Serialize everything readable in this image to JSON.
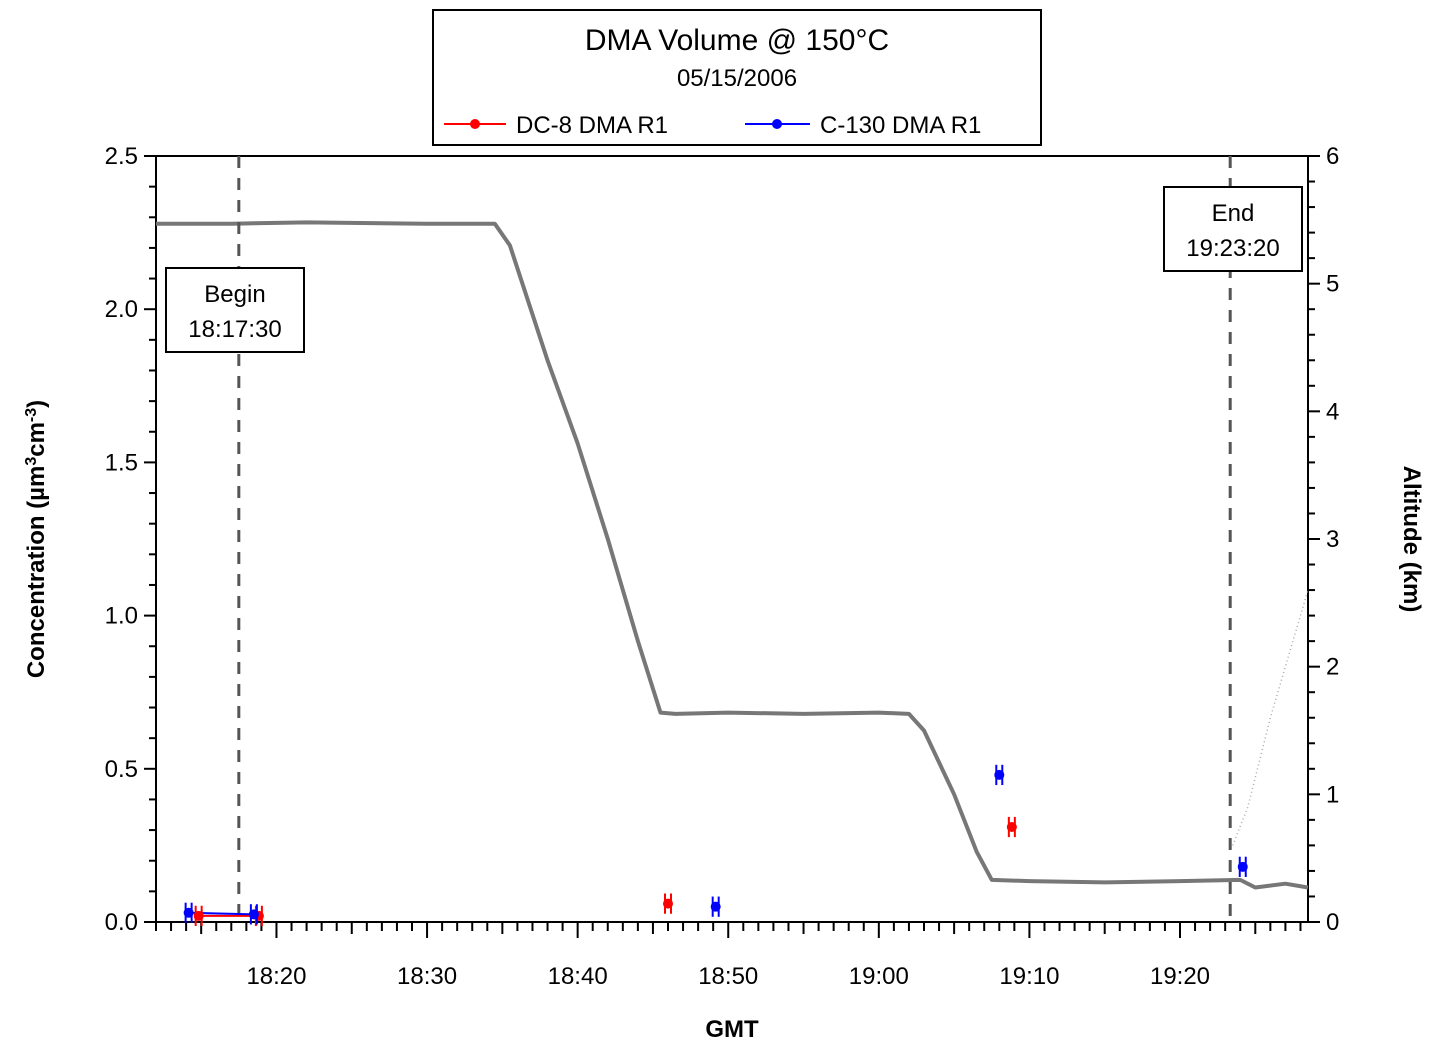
{
  "chart_data": {
    "type": "scatter",
    "title": "DMA Volume @ 150°C",
    "subtitle": "05/15/2006",
    "xlabel": "GMT",
    "ylabel": {
      "main": "Concentration  (µm",
      "sup1": "3",
      "mid": "cm",
      "sup2": "-3",
      "end": ")"
    },
    "y2label": "Altitude  (km)",
    "xlim": [
      "18:12:00",
      "19:28:30"
    ],
    "ylim": [
      0,
      2.5
    ],
    "y2lim": [
      0,
      6
    ],
    "x_ticks": [
      "18:20",
      "18:30",
      "18:40",
      "18:50",
      "19:00",
      "19:10",
      "19:20"
    ],
    "y_ticks": [
      "0.0",
      "0.5",
      "1.0",
      "1.5",
      "2.0",
      "2.5"
    ],
    "y2_ticks": [
      "0",
      "1",
      "2",
      "3",
      "4",
      "5",
      "6"
    ],
    "legend_position": "top-center",
    "series": [
      {
        "name": "DC-8 DMA R1",
        "color": "#ff0000",
        "points": [
          {
            "x": "18:14:50",
            "y": 0.02,
            "err": 0.02
          },
          {
            "x": "18:18:50",
            "y": 0.02,
            "err": 0.02
          },
          {
            "x": "18:46:00",
            "y": 0.06,
            "err": 0.02
          },
          {
            "x": "19:08:50",
            "y": 0.31,
            "err": 0.02
          }
        ]
      },
      {
        "name": "C-130 DMA R1",
        "color": "#0000ff",
        "points": [
          {
            "x": "18:14:10",
            "y": 0.03,
            "err": 0.02
          },
          {
            "x": "18:18:30",
            "y": 0.025,
            "err": 0.02
          },
          {
            "x": "18:49:10",
            "y": 0.05,
            "err": 0.02
          },
          {
            "x": "19:08:00",
            "y": 0.48,
            "err": 0.02
          },
          {
            "x": "19:24:10",
            "y": 0.18,
            "err": 0.02
          }
        ]
      }
    ],
    "altitude_series": {
      "color": "#777777",
      "points": [
        [
          "18:12:00",
          5.47
        ],
        [
          "18:17:00",
          5.47
        ],
        [
          "18:22:00",
          5.48
        ],
        [
          "18:30:00",
          5.47
        ],
        [
          "18:34:30",
          5.47
        ],
        [
          "18:35:30",
          5.3
        ],
        [
          "18:38:00",
          4.4
        ],
        [
          "18:40:00",
          3.75
        ],
        [
          "18:42:00",
          3.0
        ],
        [
          "18:44:00",
          2.2
        ],
        [
          "18:45:30",
          1.64
        ],
        [
          "18:46:30",
          1.63
        ],
        [
          "18:50:00",
          1.64
        ],
        [
          "18:55:00",
          1.63
        ],
        [
          "19:00:00",
          1.64
        ],
        [
          "19:02:00",
          1.63
        ],
        [
          "19:03:00",
          1.5
        ],
        [
          "19:05:00",
          1.0
        ],
        [
          "19:06:30",
          0.55
        ],
        [
          "19:07:30",
          0.33
        ],
        [
          "19:10:00",
          0.32
        ],
        [
          "19:15:00",
          0.31
        ],
        [
          "19:20:00",
          0.32
        ],
        [
          "19:24:00",
          0.33
        ],
        [
          "19:25:00",
          0.27
        ],
        [
          "19:27:00",
          0.3
        ],
        [
          "19:28:30",
          0.27
        ]
      ]
    },
    "secondary_trace": {
      "color": "#aaaaaa",
      "points": [
        [
          "19:23:30",
          0.6
        ],
        [
          "19:24:30",
          0.9
        ],
        [
          "19:26:00",
          1.6
        ],
        [
          "19:27:30",
          2.2
        ],
        [
          "19:28:30",
          2.6
        ]
      ]
    },
    "markers": [
      {
        "label": "Begin",
        "time_label": "18:17:30",
        "x": "18:17:30"
      },
      {
        "label": "End",
        "time_label": "19:23:20",
        "x": "19:23:20"
      }
    ]
  }
}
